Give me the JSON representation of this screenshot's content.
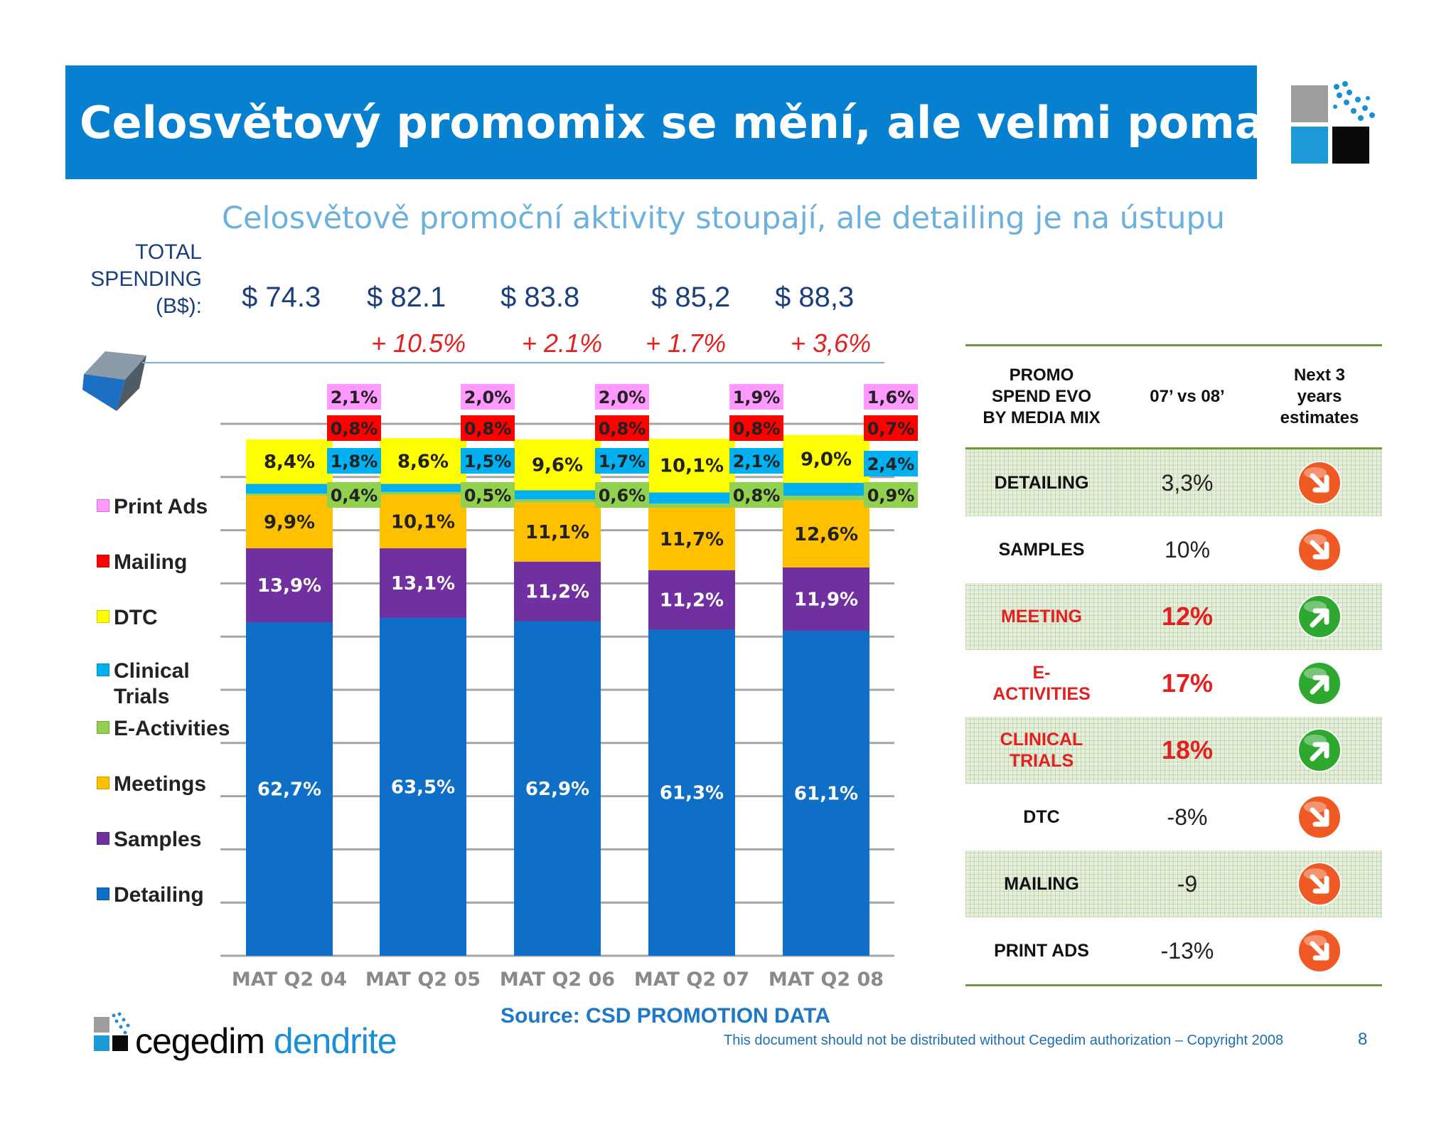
{
  "header": {
    "title": "Celosvětový promomix se mění, ale velmi pomalu….",
    "subtitle": "Celosvětově promoční aktivity stoupají, ale detailing je na ústupu"
  },
  "total_spending": {
    "label_lines": [
      "TOTAL",
      "SPENDING",
      "(B$):"
    ],
    "values": [
      "$ 74.3",
      "$ 82.1",
      "$ 83.8",
      "$ 85,2",
      "$ 88,3"
    ],
    "growth": [
      "+ 10.5%",
      "+ 2.1%",
      "+ 1.7%",
      "+ 3,6%"
    ]
  },
  "chart_data": {
    "type": "bar",
    "stacked": true,
    "categories": [
      "MAT Q2 04",
      "MAT Q2 05",
      "MAT Q2 06",
      "MAT Q2 07",
      "MAT Q2 08"
    ],
    "series": [
      {
        "name": "Detailing",
        "color": "#0f6fc6",
        "values": [
          62.7,
          63.5,
          62.9,
          61.3,
          61.1
        ],
        "labels": [
          "62,7%",
          "63,5%",
          "62,9%",
          "61,3%",
          "61,1%"
        ]
      },
      {
        "name": "Samples",
        "color": "#7030a0",
        "values": [
          13.9,
          13.1,
          11.2,
          11.2,
          11.9
        ],
        "labels": [
          "13,9%",
          "13,1%",
          "11,2%",
          "11,2%",
          "11,9%"
        ]
      },
      {
        "name": "Meetings",
        "color": "#ffc000",
        "values": [
          9.9,
          10.1,
          11.1,
          11.7,
          12.6
        ],
        "labels": [
          "9,9%",
          "10,1%",
          "11,1%",
          "11,7%",
          "12,6%"
        ]
      },
      {
        "name": "E-Activities",
        "color": "#92d050",
        "values": [
          0.4,
          0.5,
          0.6,
          0.8,
          0.9
        ],
        "labels": [
          "0,4%",
          "0,5%",
          "0,6%",
          "0,8%",
          "0,9%"
        ]
      },
      {
        "name": "Clinical Trials",
        "color": "#00b0f0",
        "values": [
          1.8,
          1.5,
          1.7,
          2.1,
          2.4
        ],
        "labels": [
          "1,8%",
          "1,5%",
          "1,7%",
          "2,1%",
          "2,4%"
        ]
      },
      {
        "name": "DTC",
        "color": "#ffff00",
        "values": [
          8.4,
          8.6,
          9.6,
          10.1,
          9.0
        ],
        "labels": [
          "8,4%",
          "8,6%",
          "9,6%",
          "10,1%",
          "9,0%"
        ]
      },
      {
        "name": "Mailing",
        "color": "#ff0000",
        "values": [
          0.8,
          0.8,
          0.8,
          0.8,
          0.7
        ],
        "labels": [
          "0,8%",
          "0,8%",
          "0,8%",
          "0,8%",
          "0,7%"
        ]
      },
      {
        "name": "Print Ads",
        "color": "#ff99ff",
        "values": [
          2.1,
          2.0,
          2.0,
          1.9,
          1.6
        ],
        "labels": [
          "2,1%",
          "2,0%",
          "2,0%",
          "1,9%",
          "1,6%"
        ]
      }
    ],
    "ylim": [
      0,
      100
    ],
    "grid": true,
    "legend_position": "left",
    "legend_order": [
      "Print Ads",
      "Mailing",
      "DTC",
      "Clinical Trials",
      "E-Activities",
      "Meetings",
      "Samples",
      "Detailing"
    ]
  },
  "legend_labels": {
    "print_ads": "Print Ads",
    "mailing": "Mailing",
    "dtc": "DTC",
    "clinical_1": "Clinical",
    "clinical_2": "Trials",
    "e_activities": "E-Activities",
    "meetings": "Meetings",
    "samples": "Samples",
    "detailing": "Detailing"
  },
  "table": {
    "headers": [
      "PROMO SPEND EVO BY MEDIA MIX",
      "07’ vs 08’",
      "Next 3 years estimates"
    ],
    "rows": [
      {
        "media": "DETAILING",
        "change": "3,3%",
        "trend": "down"
      },
      {
        "media": "SAMPLES",
        "change": "10%",
        "trend": "down"
      },
      {
        "media": "MEETING",
        "change": "12%",
        "trend": "up"
      },
      {
        "media": "E-ACTIVITIES",
        "change": "17%",
        "trend": "up"
      },
      {
        "media": "CLINICAL TRIALS",
        "change": "18%",
        "trend": "up"
      },
      {
        "media": "DTC",
        "change": "-8%",
        "trend": "down"
      },
      {
        "media": "MAILING",
        "change": "-9",
        "trend": "down"
      },
      {
        "media": "PRINT ADS",
        "change": "-13%",
        "trend": "down"
      }
    ]
  },
  "footer": {
    "source": "Source: CSD PROMOTION DATA",
    "copyright": "This document should not be distributed without Cegedim authorization – Copyright 2008",
    "page": "8",
    "logo_word_1": "cegedim",
    "logo_word_2": "dendrite"
  },
  "colors": {
    "title_bar": "#0680cf",
    "subtitle": "#6cb0de",
    "growth": "#e32020",
    "arrow_up": "#2ea82e",
    "arrow_down": "#ef5a24"
  }
}
